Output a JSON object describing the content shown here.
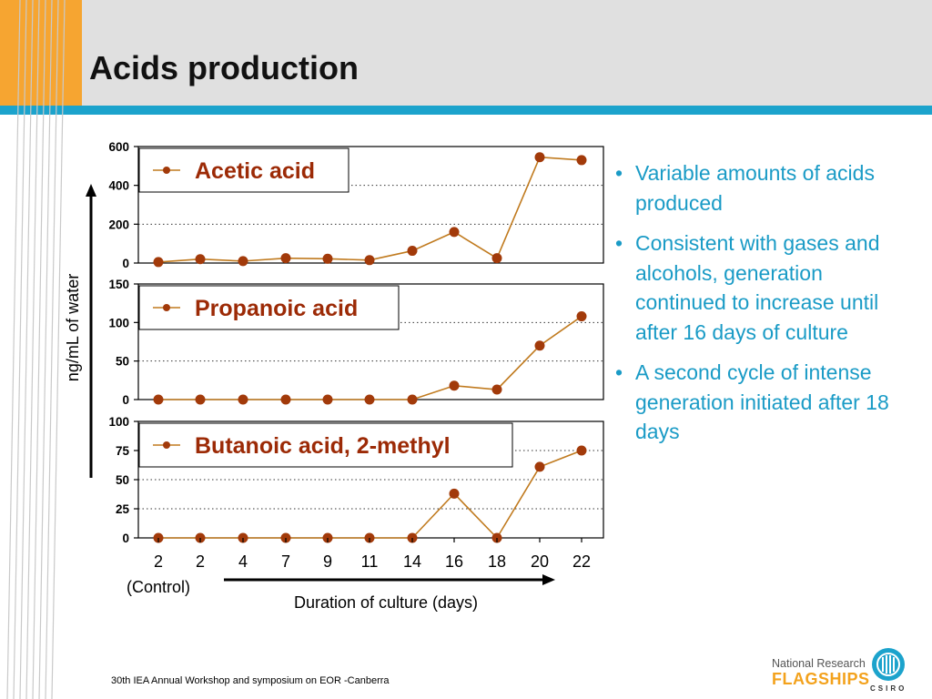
{
  "slide": {
    "title": "Acids production",
    "footer": "30th IEA Annual Workshop and symposium on EOR -Canberra",
    "logo": {
      "line1": "National Research",
      "line2": "FLAGSHIPS",
      "line3": "CSIRO"
    },
    "bullets": [
      "Variable amounts of acids produced",
      "Consistent with gases and alcohols, generation continued to increase until after 16 days of culture",
      "A second cycle of intense generation initiated after 18 days"
    ],
    "colors": {
      "accent": "#f6a531",
      "rule": "#1ca3cc",
      "bullet_text": "#1a9bc6"
    }
  },
  "chart_data": {
    "type": "line",
    "x": [
      "2",
      "2",
      "4",
      "7",
      "9",
      "11",
      "14",
      "16",
      "18",
      "20",
      "22"
    ],
    "x_note": "(Control)",
    "xlabel": "Duration of culture (days)",
    "ylabel": "ng/mL of water",
    "grid": true,
    "line_color": "#c07a1e",
    "marker_color": "#a23a0a",
    "label_color": "#9c2a06",
    "panels": [
      {
        "name": "Acetic acid",
        "ylim": [
          0,
          600
        ],
        "yticks": [
          0,
          200,
          400,
          600
        ],
        "values": [
          5,
          20,
          10,
          25,
          22,
          15,
          63,
          160,
          25,
          545,
          530
        ]
      },
      {
        "name": "Propanoic acid",
        "ylim": [
          0,
          150
        ],
        "yticks": [
          0,
          50,
          100,
          150
        ],
        "values": [
          0,
          0,
          0,
          0,
          0,
          0,
          0,
          18,
          13,
          70,
          108
        ]
      },
      {
        "name": "Butanoic acid, 2-methyl",
        "ylim": [
          0,
          100
        ],
        "yticks": [
          0,
          25,
          50,
          75,
          100
        ],
        "values": [
          0,
          0,
          0,
          0,
          0,
          0,
          0,
          38,
          0,
          61,
          75
        ]
      }
    ]
  }
}
